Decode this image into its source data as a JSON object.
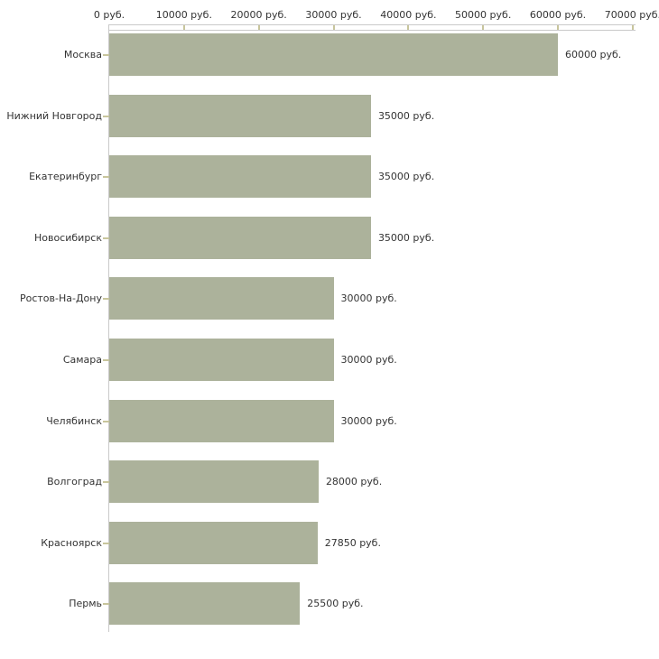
{
  "chart_data": {
    "type": "bar",
    "orientation": "horizontal",
    "unit": "руб.",
    "categories": [
      "Москва",
      "Нижний Новгород",
      "Екатеринбург",
      "Новосибирск",
      "Ростов-На-Дону",
      "Самара",
      "Челябинск",
      "Волгоград",
      "Красноярск",
      "Пермь"
    ],
    "values": [
      60000,
      35000,
      35000,
      35000,
      30000,
      30000,
      30000,
      28000,
      27850,
      25500
    ],
    "value_labels": [
      "60000 руб.",
      "35000 руб.",
      "35000 руб.",
      "35000 руб.",
      "30000 руб.",
      "30000 руб.",
      "30000 руб.",
      "28000 руб.",
      "27850 руб.",
      "25500 руб."
    ],
    "x_axis": {
      "min": 0,
      "max": 70000,
      "tick_values": [
        0,
        10000,
        20000,
        30000,
        40000,
        50000,
        60000,
        70000
      ],
      "tick_labels": [
        "0 руб.",
        "10000 руб.",
        "20000 руб.",
        "30000 руб.",
        "40000 руб.",
        "50000 руб.",
        "60000 руб.",
        "70000 руб."
      ],
      "position": "top"
    },
    "grid": false,
    "legend": false,
    "colors": {
      "bar": "#acb29b",
      "tick": "#c8c59c",
      "axis_line": "#c9c9c9",
      "text": "#333333",
      "background": "#ffffff"
    }
  }
}
